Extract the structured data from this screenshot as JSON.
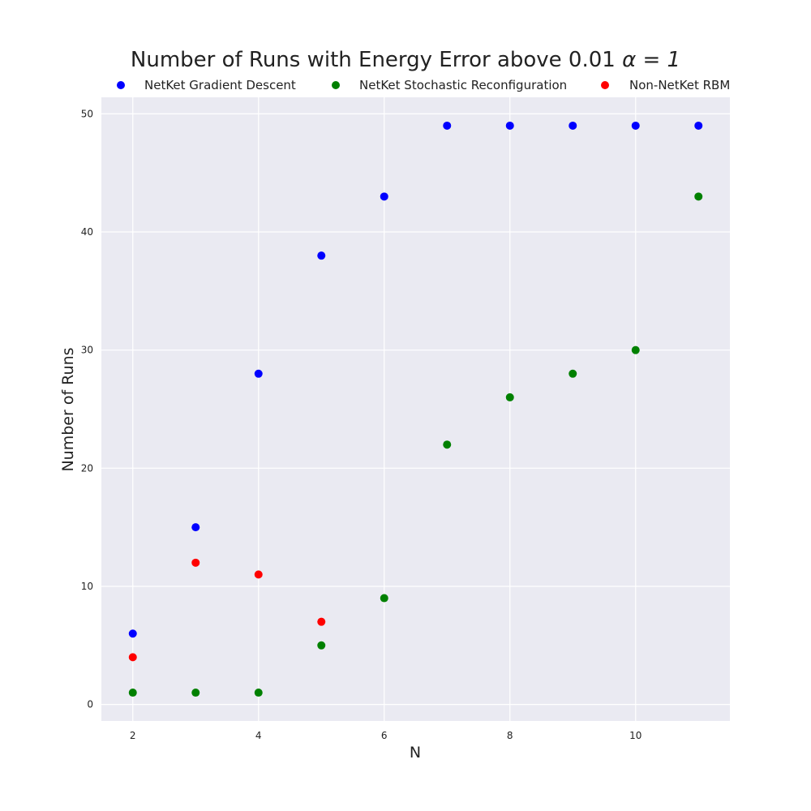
{
  "chart_data": {
    "type": "scatter",
    "title": "Number of Runs with Energy Error above 0.01 ",
    "title_math": "α = 1",
    "xlabel": "N",
    "ylabel": "Number of Runs",
    "xlim": [
      1.5,
      11.5
    ],
    "ylim": [
      -1.4,
      51.4
    ],
    "xticks": [
      "2",
      "4",
      "6",
      "8",
      "10"
    ],
    "yticks": [
      "0",
      "10",
      "20",
      "30",
      "40",
      "50"
    ],
    "grid": true,
    "legend_position": "top",
    "series": [
      {
        "name": "NetKet Gradient Descent",
        "color": "#0000ff",
        "x": [
          2,
          3,
          4,
          5,
          6,
          7,
          8,
          9,
          10,
          11
        ],
        "y": [
          6,
          15,
          28,
          38,
          43,
          49,
          49,
          49,
          49,
          49
        ]
      },
      {
        "name": "NetKet Stochastic Reconfiguration",
        "color": "#008000",
        "x": [
          2,
          3,
          4,
          5,
          6,
          7,
          8,
          9,
          10,
          11
        ],
        "y": [
          1,
          1,
          1,
          5,
          9,
          22,
          26,
          28,
          30,
          43
        ]
      },
      {
        "name": "Non-NetKet RBM",
        "color": "#ff0000",
        "x": [
          2,
          3,
          4,
          5
        ],
        "y": [
          4,
          12,
          11,
          7
        ]
      }
    ],
    "background_color": "#eaeaf2",
    "grid_color": "#ffffff"
  }
}
